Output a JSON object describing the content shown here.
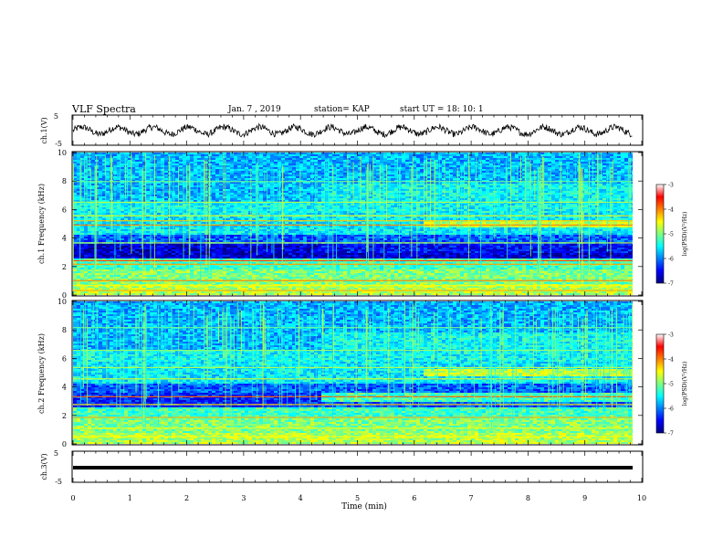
{
  "header": {
    "title": "VLF Spectra",
    "date": "Jan. 7 , 2019",
    "station": "station= KAP",
    "start": "start UT =   18: 10: 1"
  },
  "chart_data": [
    {
      "type": "line",
      "title": "",
      "ylabel": "ch.1(V)",
      "ylim": [
        -5,
        5
      ],
      "yticks": [
        "5",
        "-5"
      ],
      "xlim": [
        0,
        10
      ],
      "note_values": "waveform oscillating roughly between -2 and 2 V",
      "series": [
        {
          "values_range": [
            -2,
            2
          ]
        }
      ]
    },
    {
      "type": "heatmap",
      "ylabel": "ch.1 Frequency (kHz)",
      "ylim": [
        0,
        10
      ],
      "yticks": [
        "0",
        "2",
        "4",
        "6",
        "8",
        "10"
      ],
      "xlim": [
        0,
        10
      ],
      "colorbar": {
        "label": "log(PSD)(V²/Hz)",
        "range": [
          -7,
          -3
        ],
        "ticks": [
          "-3",
          "-4",
          "-5",
          "-6",
          "-7"
        ]
      }
    },
    {
      "type": "heatmap",
      "ylabel": "ch.2 Frequency (kHz)",
      "ylim": [
        0,
        10
      ],
      "yticks": [
        "0",
        "2",
        "4",
        "6",
        "8",
        "10"
      ],
      "xlim": [
        0,
        10
      ],
      "colorbar": {
        "label": "log(PSD)(V²/Hz)",
        "range": [
          -7,
          -3
        ],
        "ticks": [
          "-3",
          "-4",
          "-5",
          "-6",
          "-7"
        ]
      }
    },
    {
      "type": "line",
      "ylabel": "ch.3(V)",
      "ylim": [
        -5,
        5
      ],
      "yticks": [
        "5",
        "-5"
      ],
      "xlim": [
        0,
        10
      ],
      "series": [
        {
          "values_range": [
            -1.5,
            -1.5
          ]
        }
      ]
    }
  ],
  "xaxis": {
    "label": "Time (min)",
    "ticks": [
      "0",
      "1",
      "2",
      "3",
      "4",
      "5",
      "6",
      "7",
      "8",
      "9",
      "10"
    ]
  }
}
